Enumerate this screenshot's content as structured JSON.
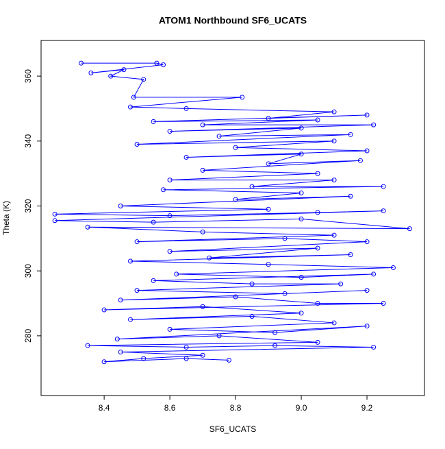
{
  "chart_data": {
    "type": "line",
    "title": "ATOM1 Northbound SF6_UCATS",
    "x_label": "SF6_UCATS",
    "y_label": "Theta (K)",
    "color": "#0000ff",
    "markers": true,
    "x": [
      8.33,
      8.56,
      8.58,
      8.36,
      8.46,
      8.42,
      8.52,
      8.49,
      8.82,
      8.48,
      8.65,
      9.1,
      8.9,
      9.2,
      8.55,
      9.05,
      8.7,
      9.22,
      8.6,
      9.0,
      8.75,
      9.15,
      8.5,
      9.1,
      8.8,
      9.2,
      8.65,
      9.0,
      8.9,
      9.18,
      8.7,
      9.05,
      8.6,
      9.1,
      8.85,
      9.25,
      8.58,
      9.0,
      8.8,
      9.15,
      8.45,
      8.9,
      8.25,
      8.6,
      9.05,
      9.25,
      8.25,
      8.55,
      9.0,
      9.33,
      8.35,
      8.7,
      9.1,
      8.5,
      8.95,
      9.2,
      8.6,
      9.05,
      8.72,
      9.15,
      8.48,
      8.9,
      9.28,
      8.62,
      9.0,
      9.22,
      8.55,
      8.85,
      9.12,
      8.5,
      8.95,
      9.2,
      8.45,
      8.8,
      9.05,
      9.25,
      8.4,
      8.7,
      9.0,
      8.48,
      8.85,
      9.1,
      8.6,
      8.92,
      9.2,
      8.44,
      8.75,
      9.05,
      8.35,
      8.65,
      8.92,
      9.22,
      8.45,
      8.7,
      8.52,
      8.4,
      8.65,
      8.78
    ],
    "values": [
      364,
      364,
      363.5,
      361,
      362,
      360,
      359,
      353.5,
      353.5,
      350.5,
      350,
      349,
      347,
      348,
      346,
      346.5,
      345,
      345,
      343,
      344,
      341.5,
      342,
      339,
      340,
      338,
      337,
      335,
      336,
      333,
      334,
      331,
      330,
      328,
      328,
      326,
      326,
      325,
      324,
      322,
      323,
      320,
      319,
      317.5,
      317,
      318,
      318.5,
      315.5,
      315,
      316,
      313,
      313.5,
      312,
      311,
      309,
      310,
      309,
      306,
      307,
      304,
      305,
      303,
      302,
      301,
      299,
      298,
      299,
      297,
      296,
      296,
      294,
      293,
      294,
      291,
      292,
      290,
      290,
      288,
      289,
      287,
      285,
      286,
      284,
      282,
      281,
      283,
      279,
      280,
      278,
      277,
      276.5,
      277,
      276.5,
      275,
      274,
      273,
      272,
      273,
      272.5
    ],
    "xlim": [
      8.208,
      9.375
    ],
    "ylim": [
      261.6,
      371
    ],
    "xticks": [
      8.4,
      8.6,
      8.8,
      {
        "value": 9,
        "label": "9.0"
      },
      9.2
    ],
    "yticks": [
      280,
      300,
      320,
      340,
      360
    ]
  }
}
